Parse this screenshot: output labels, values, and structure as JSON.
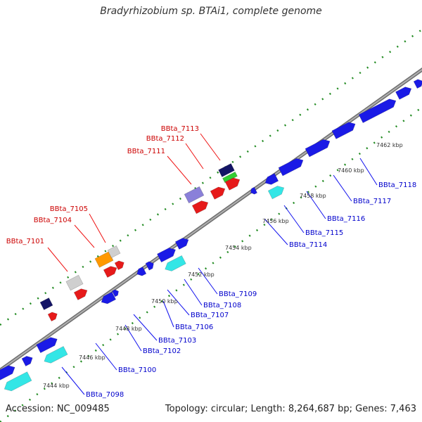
{
  "title": "Bradyrhizobium sp. BTAi1, complete genome",
  "footer": {
    "accession": "Accession: NC_009485",
    "summary": "Topology: circular; Length: 8,264,687 bp; Genes: 7,463"
  },
  "colors": {
    "forward_blue": "#1a1ae6",
    "cyan": "#33e6e6",
    "red": "#e61a1a",
    "orange": "#ff9900",
    "grey": "#cfcfcf",
    "navy": "#141466",
    "lavender": "#8a80d9",
    "green": "#33cc33",
    "backbone": "#8c8c8c",
    "forward_label": "#cc0000",
    "reverse_label": "#0000cc",
    "ruler_tick": "#228b22"
  },
  "ruler": {
    "unit": "kbp",
    "ticks": [
      "7444 kbp",
      "7446 kbp",
      "7448 kbp",
      "7450 kbp",
      "7452 kbp",
      "7454 kbp",
      "7456 kbp",
      "7458 kbp",
      "7460 kbp",
      "7462 kbp"
    ]
  },
  "forward_labels": [
    "BBta_7101",
    "BBta_7104",
    "BBta_7105",
    "BBta_7111",
    "BBta_7112",
    "BBta_7113"
  ],
  "reverse_labels": [
    "BBta_7098",
    "BBta_7100",
    "BBta_7102",
    "BBta_7103",
    "BBta_7106",
    "BBta_7107",
    "BBta_7108",
    "BBta_7109",
    "BBta_7114",
    "BBta_7115",
    "BBta_7116",
    "BBta_7117",
    "BBta_7118"
  ]
}
